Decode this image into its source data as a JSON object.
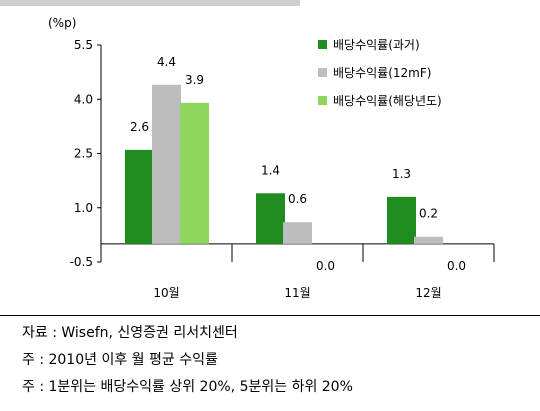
{
  "chart_data": {
    "type": "bar",
    "unit_label": "(%p)",
    "categories": [
      "10월",
      "11월",
      "12월"
    ],
    "series": [
      {
        "name": "배당수익률(과거)",
        "values": [
          2.6,
          1.4,
          1.3
        ],
        "color": "#1e8c1e"
      },
      {
        "name": "배당수익률(12mF)",
        "values": [
          4.4,
          0.6,
          0.2
        ],
        "color": "#bdbdbd"
      },
      {
        "name": "배당수익률(해당년도)",
        "values": [
          3.9,
          0.0,
          0.0
        ],
        "color": "#8ed65e"
      }
    ],
    "data_labels": [
      [
        "2.6",
        "4.4",
        "3.9"
      ],
      [
        "1.4",
        "0.6",
        "0.0"
      ],
      [
        "1.3",
        "0.2",
        "0.0"
      ]
    ],
    "yticks": [
      "5.5",
      "4.0",
      "2.5",
      "1.0",
      "-0.5"
    ],
    "ylim": [
      -0.5,
      5.5
    ],
    "legend_position": "top-right",
    "grid": false
  },
  "footer": {
    "source": "자료 : Wisefn,  신영증권 리서치센터",
    "note1": "주 : 2010년 이후 월 평균 수익률",
    "note2": "주 : 1분위는 배당수익률 상위 20%, 5분위는 하위 20%"
  }
}
